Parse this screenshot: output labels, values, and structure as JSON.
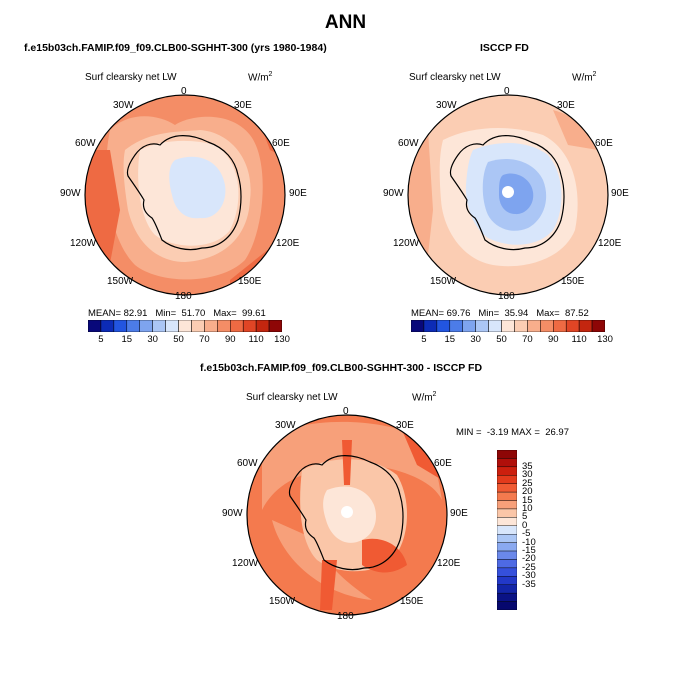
{
  "page": {
    "title": "ANN"
  },
  "panels": [
    {
      "id": "model",
      "case_title": "f.e15b03ch.FAMIP.f09_f09.CLB00-SGHHT-300 (yrs 1980-1984)",
      "variable": "Surf clearsky net LW",
      "units": "W/m",
      "units_exp": "2",
      "stats": {
        "mean_label": "MEAN=",
        "mean": "82.91",
        "min_label": "Min=",
        "min": "51.70",
        "max_label": "Max=",
        "max": "99.61"
      },
      "colorbar": {
        "colors": [
          "#08087a",
          "#0c2bb6",
          "#2255e0",
          "#4c7ce8",
          "#7ea4ef",
          "#abc6f5",
          "#d8e6fb",
          "#fde6d8",
          "#fbcdb3",
          "#f8ae8c",
          "#f48d66",
          "#ee6a43",
          "#e04525",
          "#c3260f",
          "#8e0606"
        ],
        "labels": [
          "5",
          "15",
          "30",
          "50",
          "70",
          "90",
          "110",
          "130"
        ]
      }
    },
    {
      "id": "obs",
      "case_title": "ISCCP FD",
      "variable": "Surf clearsky net LW",
      "units": "W/m",
      "units_exp": "2",
      "stats": {
        "mean_label": "MEAN=",
        "mean": "69.76",
        "min_label": "Min=",
        "min": "35.94",
        "max_label": "Max=",
        "max": "87.52"
      },
      "colorbar": {
        "colors": [
          "#08087a",
          "#0c2bb6",
          "#2255e0",
          "#4c7ce8",
          "#7ea4ef",
          "#abc6f5",
          "#d8e6fb",
          "#fde6d8",
          "#fbcdb3",
          "#f8ae8c",
          "#f48d66",
          "#ee6a43",
          "#e04525",
          "#c3260f",
          "#8e0606"
        ],
        "labels": [
          "5",
          "15",
          "30",
          "50",
          "70",
          "90",
          "110",
          "130"
        ]
      }
    },
    {
      "id": "diff",
      "case_title": "f.e15b03ch.FAMIP.f09_f09.CLB00-SGHHT-300 - ISCCP FD",
      "variable": "Surf clearsky net LW",
      "units": "W/m",
      "units_exp": "2",
      "stats_line": "MIN =  -3.19 MAX =  26.97",
      "colorbar": {
        "colors": [
          "#8e0606",
          "#b00f0a",
          "#cc1f0e",
          "#e33a1c",
          "#f05a33",
          "#f47a4e",
          "#f7a07a",
          "#fac6a8",
          "#fde6d8",
          "#d8e6fb",
          "#abc6f5",
          "#8aa9f0",
          "#6a88ea",
          "#4e6ae4",
          "#3550dc",
          "#2238c8",
          "#1325a8",
          "#0a1285",
          "#06086e"
        ],
        "labels": [
          "35",
          "30",
          "25",
          "20",
          "15",
          "10",
          "5",
          "0",
          "-5",
          "-10",
          "-15",
          "-20",
          "-25",
          "-30",
          "-35"
        ]
      }
    }
  ],
  "lon_labels": [
    "0",
    "30E",
    "60E",
    "90E",
    "120E",
    "150E",
    "180",
    "150W",
    "120W",
    "90W",
    "60W",
    "30W"
  ]
}
